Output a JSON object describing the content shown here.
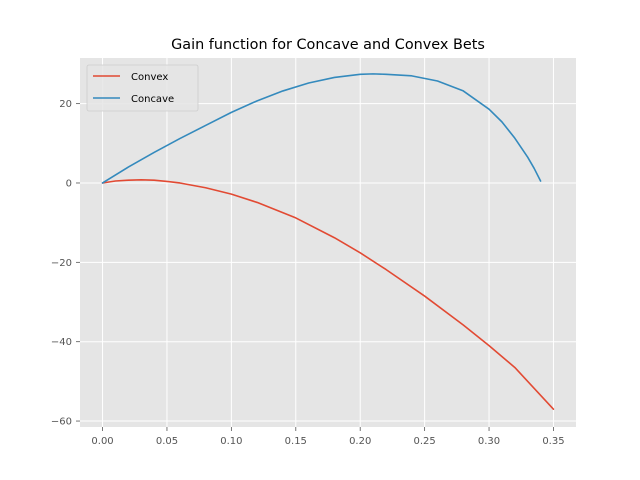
{
  "chart_data": {
    "type": "line",
    "title": "Gain function for Concave and Convex Bets",
    "xlabel": "",
    "ylabel": "",
    "xlim": [
      -0.0175,
      0.3675
    ],
    "ylim": [
      -61.5,
      31.5
    ],
    "xticks": [
      0.0,
      0.05,
      0.1,
      0.15,
      0.2,
      0.25,
      0.3,
      0.35
    ],
    "xtick_labels": [
      "0.00",
      "0.05",
      "0.10",
      "0.15",
      "0.20",
      "0.25",
      "0.30",
      "0.35"
    ],
    "yticks": [
      -60,
      -40,
      -20,
      0,
      20
    ],
    "ytick_labels": [
      "−60",
      "−40",
      "−20",
      "0",
      "20"
    ],
    "grid": true,
    "legend_position": "top-left",
    "series": [
      {
        "name": "Convex",
        "color": "#E24A33",
        "x": [
          0.0,
          0.01,
          0.02,
          0.03,
          0.04,
          0.05,
          0.06,
          0.08,
          0.1,
          0.12,
          0.15,
          0.18,
          0.2,
          0.22,
          0.25,
          0.28,
          0.3,
          0.32,
          0.35
        ],
        "y": [
          0.0,
          0.5,
          0.7,
          0.8,
          0.7,
          0.4,
          0.0,
          -1.2,
          -2.8,
          -4.9,
          -8.8,
          -13.8,
          -17.6,
          -21.8,
          -28.5,
          -35.8,
          -41.0,
          -46.5,
          -57.0
        ]
      },
      {
        "name": "Concave",
        "color": "#348ABD",
        "x": [
          0.0,
          0.02,
          0.04,
          0.06,
          0.08,
          0.1,
          0.12,
          0.14,
          0.16,
          0.18,
          0.2,
          0.21,
          0.22,
          0.24,
          0.26,
          0.28,
          0.3,
          0.31,
          0.32,
          0.33,
          0.335,
          0.34
        ],
        "y": [
          0.0,
          4.0,
          7.7,
          11.2,
          14.5,
          17.8,
          20.7,
          23.2,
          25.2,
          26.6,
          27.4,
          27.5,
          27.4,
          27.0,
          25.7,
          23.2,
          18.6,
          15.4,
          11.3,
          6.5,
          3.7,
          0.5
        ]
      }
    ]
  }
}
